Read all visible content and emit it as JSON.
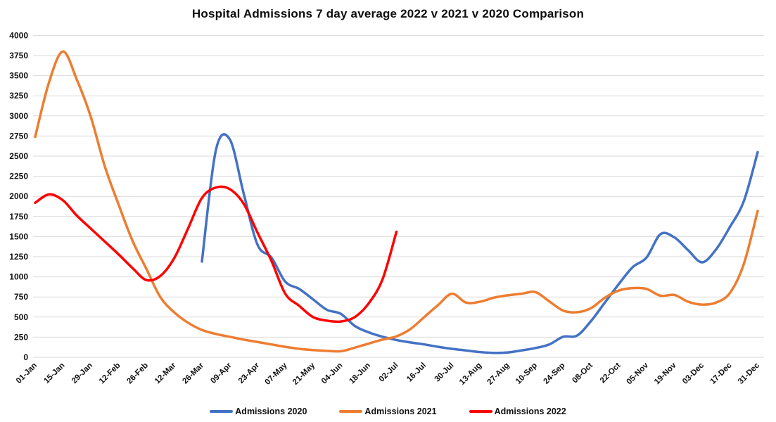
{
  "title": "Hospital Admissions 7 day average 2022 v 2021 v 2020 Comparison",
  "chart_data": {
    "type": "line",
    "title": "Hospital Admissions 7 day average 2022 v 2021 v 2020 Comparison",
    "grid": true,
    "legend_position": "bottom",
    "background": "#ffffff",
    "gridline_color": "#d9d9d9",
    "y_axis": {
      "min": 0,
      "max": 4000,
      "step": 250
    },
    "x_total_days": 364,
    "tick_interval_days": 14,
    "x_tick_labels": [
      "01-Jan",
      "15-Jan",
      "29-Jan",
      "12-Feb",
      "26-Feb",
      "12-Mar",
      "26-Mar",
      "09-Apr",
      "23-Apr",
      "07-May",
      "21-May",
      "04-Jun",
      "18-Jun",
      "02-Jul",
      "16-Jul",
      "30-Jul",
      "13-Aug",
      "27-Aug",
      "10-Sep",
      "24-Sep",
      "08-Oct",
      "22-Oct",
      "05-Nov",
      "19-Nov",
      "03-Dec",
      "17-Dec",
      "31-Dec"
    ],
    "series": [
      {
        "name": "Admissions 2020",
        "color": "#4472C4",
        "start_day": 84,
        "step_days": 7,
        "values": [
          1190,
          2570,
          2710,
          2040,
          1400,
          1240,
          940,
          850,
          720,
          590,
          540,
          390,
          310,
          255,
          215,
          185,
          160,
          130,
          105,
          85,
          65,
          55,
          60,
          85,
          115,
          160,
          255,
          270,
          450,
          680,
          910,
          1120,
          1240,
          1530,
          1490,
          1330,
          1180,
          1340,
          1620,
          1940,
          2550
        ]
      },
      {
        "name": "Admissions 2021",
        "color": "#ED7D31",
        "start_day": 0,
        "step_days": 7,
        "values": [
          2740,
          3420,
          3800,
          3450,
          2990,
          2380,
          1900,
          1450,
          1100,
          750,
          560,
          430,
          340,
          290,
          255,
          220,
          190,
          160,
          130,
          105,
          90,
          80,
          75,
          120,
          170,
          220,
          260,
          350,
          500,
          650,
          790,
          680,
          690,
          740,
          770,
          790,
          810,
          695,
          580,
          560,
          610,
          740,
          830,
          860,
          850,
          765,
          775,
          690,
          655,
          680,
          800,
          1160,
          1820
        ]
      },
      {
        "name": "Admissions 2022",
        "color": "#FF0000",
        "start_day": 0,
        "step_days": 7,
        "values": [
          1920,
          2025,
          1950,
          1760,
          1600,
          1440,
          1280,
          1110,
          960,
          1010,
          1230,
          1600,
          1980,
          2110,
          2090,
          1910,
          1550,
          1200,
          790,
          640,
          500,
          455,
          445,
          500,
          670,
          970,
          1560
        ]
      }
    ]
  }
}
